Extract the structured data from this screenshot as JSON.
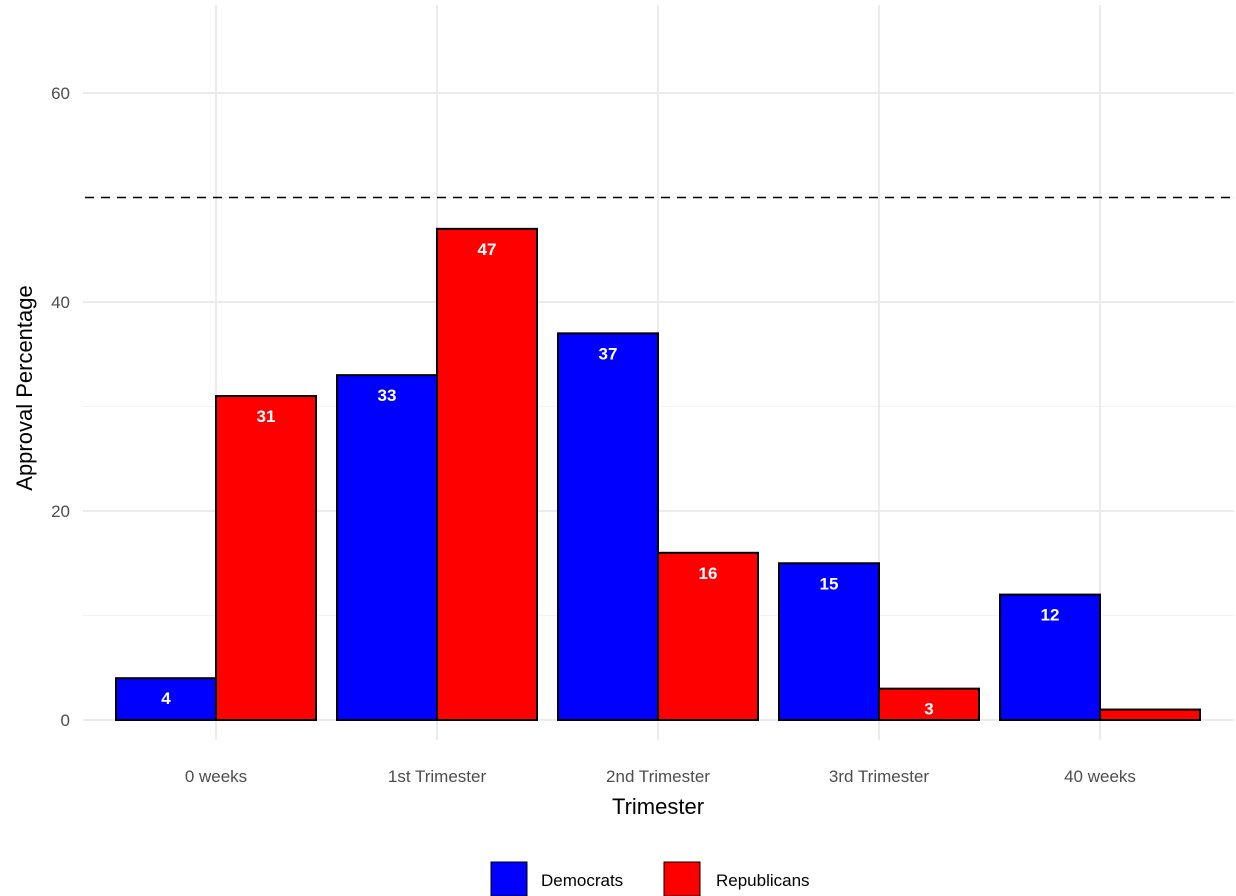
{
  "chart_data": {
    "type": "bar",
    "title": "",
    "xlabel": "Trimester",
    "ylabel": "Approval Percentage",
    "categories": [
      "0 weeks",
      "1st Trimester",
      "2nd Trimester",
      "3rd Trimester",
      "40 weeks"
    ],
    "series": [
      {
        "name": "Democrats",
        "color": "#0000ff",
        "values": [
          4,
          33,
          37,
          15,
          12
        ]
      },
      {
        "name": "Republicans",
        "color": "#ff0000",
        "values": [
          31,
          47,
          16,
          3,
          1
        ]
      }
    ],
    "ylim": [
      0,
      66
    ],
    "yticks": [
      0,
      20,
      40,
      60
    ],
    "reference_line": {
      "y": 50,
      "style": "dashed"
    },
    "grid": true,
    "legend_position": "bottom"
  }
}
